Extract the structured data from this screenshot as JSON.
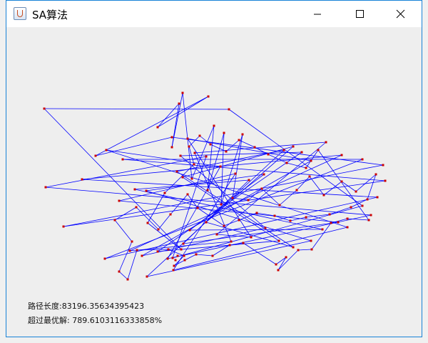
{
  "window": {
    "title": "SA算法",
    "icon": "java-cup-icon"
  },
  "controls": {
    "minimize": "minimize-icon",
    "maximize": "maximize-icon",
    "close": "close-icon"
  },
  "result": {
    "path_length_label": "路径长度:83196.35634395423",
    "over_optimal_label": "超过最优解: 789.6103116333858%"
  },
  "colors": {
    "route": "#0000ff",
    "city": "#cc0000",
    "background": "#eeeeee"
  },
  "chart_data": {
    "type": "scatter",
    "title": "",
    "xlabel": "",
    "ylabel": "",
    "connected": true,
    "closed": true,
    "points": [
      [
        53,
        114
      ],
      [
        247,
        92
      ],
      [
        283,
        97
      ],
      [
        312,
        115
      ],
      [
        291,
        138
      ],
      [
        305,
        148
      ],
      [
        331,
        150
      ],
      [
        242,
        107
      ],
      [
        232,
        154
      ],
      [
        140,
        172
      ],
      [
        163,
        185
      ],
      [
        106,
        213
      ],
      [
        55,
        224
      ],
      [
        158,
        243
      ],
      [
        180,
        227
      ],
      [
        196,
        229
      ],
      [
        239,
        202
      ],
      [
        247,
        210
      ],
      [
        244,
        180
      ],
      [
        254,
        156
      ],
      [
        264,
        176
      ],
      [
        280,
        181
      ],
      [
        300,
        195
      ],
      [
        321,
        205
      ],
      [
        340,
        214
      ],
      [
        361,
        206
      ],
      [
        389,
        172
      ],
      [
        402,
        167
      ],
      [
        414,
        175
      ],
      [
        427,
        187
      ],
      [
        448,
        161
      ],
      [
        470,
        179
      ],
      [
        499,
        185
      ],
      [
        528,
        193
      ],
      [
        531,
        215
      ],
      [
        520,
        238
      ],
      [
        499,
        250
      ],
      [
        511,
        263
      ],
      [
        478,
        280
      ],
      [
        465,
        273
      ],
      [
        443,
        283
      ],
      [
        427,
        299
      ],
      [
        402,
        308
      ],
      [
        382,
        299
      ],
      [
        363,
        281
      ],
      [
        343,
        294
      ],
      [
        315,
        300
      ],
      [
        295,
        290
      ],
      [
        280,
        273
      ],
      [
        257,
        284
      ],
      [
        248,
        303
      ],
      [
        233,
        323
      ],
      [
        226,
        324
      ],
      [
        234,
        340
      ],
      [
        197,
        349
      ],
      [
        212,
        314
      ],
      [
        190,
        320
      ],
      [
        173,
        313
      ],
      [
        138,
        324
      ],
      [
        80,
        279
      ],
      [
        125,
        180
      ],
      [
        212,
        140
      ],
      [
        232,
        168
      ],
      [
        260,
        212
      ],
      [
        282,
        228
      ],
      [
        301,
        248
      ],
      [
        317,
        239
      ],
      [
        339,
        242
      ],
      [
        358,
        226
      ],
      [
        383,
        249
      ],
      [
        407,
        228
      ],
      [
        425,
        209
      ],
      [
        445,
        235
      ],
      [
        470,
        216
      ],
      [
        490,
        230
      ],
      [
        518,
        206
      ],
      [
        506,
        241
      ],
      [
        483,
        252
      ],
      [
        453,
        262
      ],
      [
        420,
        266
      ],
      [
        398,
        271
      ],
      [
        376,
        264
      ],
      [
        351,
        260
      ],
      [
        326,
        270
      ],
      [
        305,
        278
      ],
      [
        268,
        253
      ],
      [
        254,
        234
      ],
      [
        230,
        262
      ],
      [
        213,
        283
      ],
      [
        182,
        252
      ],
      [
        152,
        270
      ],
      [
        176,
        300
      ],
      [
        158,
        342
      ],
      [
        170,
        353
      ],
      [
        183,
        312
      ],
      [
        227,
        311
      ],
      [
        249,
        320
      ],
      [
        235,
        334
      ],
      [
        250,
        326
      ],
      [
        266,
        318
      ],
      [
        289,
        320
      ],
      [
        313,
        305
      ],
      [
        332,
        302
      ],
      [
        378,
        332
      ],
      [
        392,
        322
      ],
      [
        381,
        340
      ],
      [
        409,
        312
      ],
      [
        428,
        311
      ],
      [
        455,
        274
      ],
      [
        478,
        268
      ],
      [
        508,
        270
      ],
      [
        437,
        172
      ],
      [
        420,
        197
      ],
      [
        393,
        190
      ],
      [
        367,
        178
      ],
      [
        348,
        168
      ],
      [
        326,
        158
      ],
      [
        308,
        174
      ],
      [
        286,
        164
      ],
      [
        271,
        152
      ],
      [
        256,
        167
      ],
      [
        263,
        192
      ],
      [
        222,
        232
      ],
      [
        198,
        274
      ],
      [
        245,
        311
      ],
      [
        240,
        320
      ],
      [
        237,
        326
      ]
    ],
    "order": [
      0,
      3,
      36,
      51,
      21,
      12,
      37,
      52,
      22,
      9,
      38,
      53,
      23,
      13,
      39,
      50,
      24,
      14,
      40,
      49,
      25,
      15,
      41,
      54,
      26,
      16,
      42,
      48,
      27,
      17,
      43,
      55,
      28,
      18,
      44,
      56,
      29,
      19,
      45,
      47,
      30,
      20,
      46,
      57,
      31,
      11,
      35,
      58,
      32,
      10,
      34,
      59,
      33,
      8,
      60,
      2,
      61,
      7,
      62,
      1,
      63,
      4,
      64,
      5,
      65,
      6,
      66,
      67,
      68,
      69,
      70,
      71,
      72,
      73,
      74,
      75,
      76,
      77,
      78,
      79,
      80,
      81,
      82,
      83,
      84,
      85,
      86,
      87,
      88,
      89,
      90,
      91,
      92,
      93,
      94,
      95,
      96,
      97,
      98,
      99,
      100,
      101,
      102,
      103,
      104,
      105,
      106,
      107,
      108,
      109,
      110,
      111,
      112,
      113,
      114,
      115,
      116,
      117,
      118,
      119,
      120,
      121,
      122,
      123,
      124
    ]
  }
}
